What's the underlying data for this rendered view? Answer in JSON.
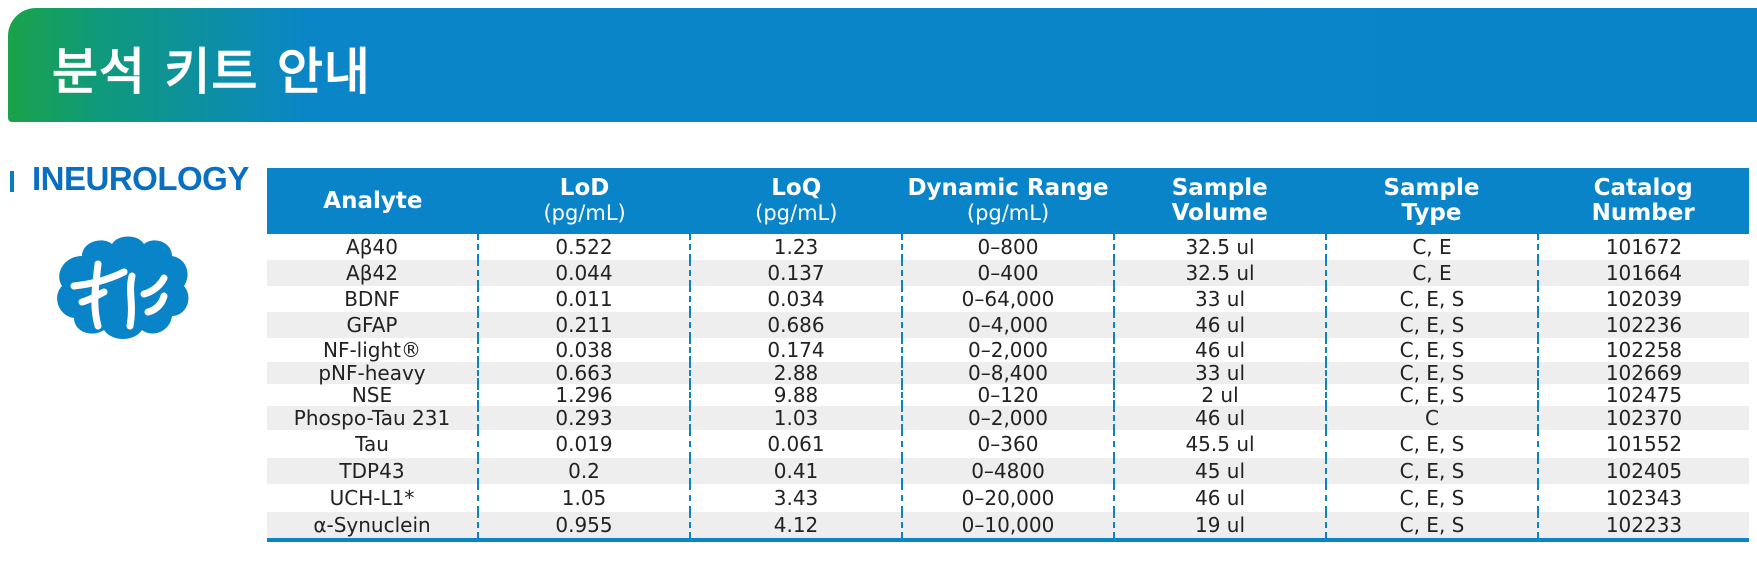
{
  "banner": {
    "title": "분석 키트 안내"
  },
  "section": {
    "title": "INEUROLOGY",
    "icon": "brain-icon"
  },
  "colors": {
    "primary": "#0a84c8",
    "banner_green": "#1aa34a",
    "row_alt": "#eeeeee"
  },
  "table": {
    "headers": [
      {
        "main": "Analyte",
        "unit": ""
      },
      {
        "main": "LoD",
        "unit": "(pg/mL)"
      },
      {
        "main": "LoQ",
        "unit": "(pg/mL)"
      },
      {
        "main": "Dynamic Range",
        "unit": "(pg/mL)"
      },
      {
        "main": "Sample",
        "unit": "Volume"
      },
      {
        "main": "Sample",
        "unit": "Type"
      },
      {
        "main": "Catalog",
        "unit": "Number"
      }
    ],
    "rows": [
      [
        "Aβ40",
        "0.522",
        "1.23",
        "0–800",
        "32.5 ul",
        "C, E",
        "101672"
      ],
      [
        "Aβ42",
        "0.044",
        "0.137",
        "0–400",
        "32.5 ul",
        "C, E",
        "101664"
      ],
      [
        "BDNF",
        "0.011",
        "0.034",
        "0–64,000",
        "33 ul",
        "C, E, S",
        "102039"
      ],
      [
        "GFAP",
        "0.211",
        "0.686",
        "0–4,000",
        "46 ul",
        "C, E, S",
        "102236"
      ],
      [
        "NF-light®",
        "0.038",
        "0.174",
        "0–2,000",
        "46 ul",
        "C, E, S",
        "102258"
      ],
      [
        "pNF-heavy",
        "0.663",
        "2.88",
        "0–8,400",
        "33 ul",
        "C, E, S",
        "102669"
      ],
      [
        "NSE",
        "1.296",
        "9.88",
        "0–120",
        "2 ul",
        "C, E, S",
        "102475"
      ],
      [
        "Phospo-Tau 231",
        "0.293",
        "1.03",
        "0–2,000",
        "46 ul",
        "C",
        "102370"
      ],
      [
        "Tau",
        "0.019",
        "0.061",
        "0–360",
        "45.5 ul",
        "C, E, S",
        "101552"
      ],
      [
        "TDP43",
        "0.2",
        "0.41",
        "0–4800",
        "45 ul",
        "C, E, S",
        "102405"
      ],
      [
        "UCH-L1*",
        "1.05",
        "3.43",
        "0–20,000",
        "46 ul",
        "C, E, S",
        "102343"
      ],
      [
        "α-Synuclein",
        "0.955",
        "4.12",
        "0–10,000",
        "19 ul",
        "C, E, S",
        "102233"
      ]
    ]
  }
}
